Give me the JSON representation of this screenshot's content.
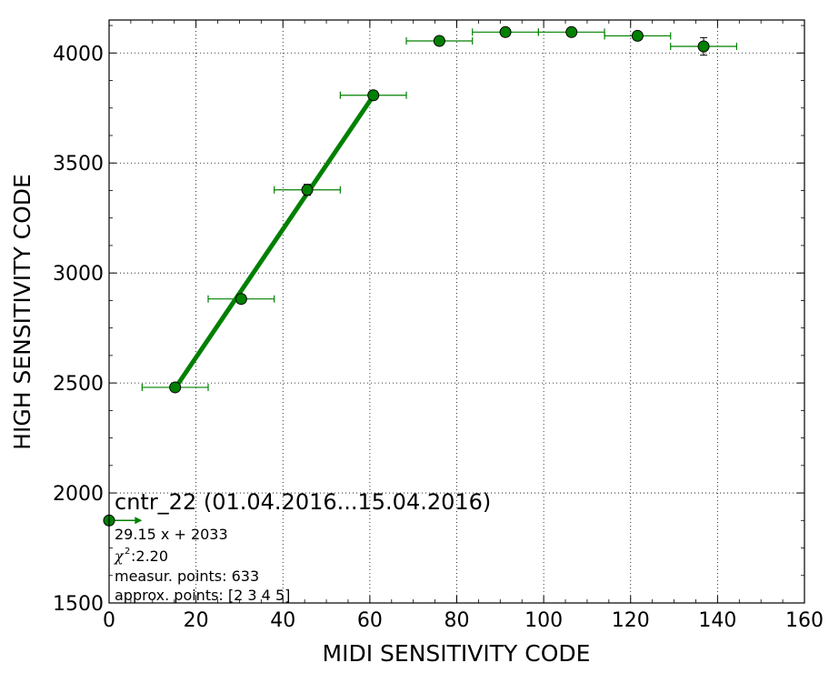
{
  "chart_data": {
    "type": "scatter",
    "title": "",
    "xlabel": "MIDI SENSITIVITY CODE",
    "ylabel": "HIGH SENSITIVITY CODE",
    "xlim": [
      0,
      160
    ],
    "ylim": [
      1500,
      4150
    ],
    "xticks": [
      0,
      20,
      40,
      60,
      80,
      100,
      120,
      140,
      160
    ],
    "yticks": [
      1500,
      2000,
      2500,
      3000,
      3500,
      4000
    ],
    "xtick_labels": [
      "0",
      "20",
      "40",
      "60",
      "80",
      "100",
      "120",
      "140",
      "160"
    ],
    "ytick_labels": [
      "1500",
      "2000",
      "2500",
      "3000",
      "3500",
      "4000"
    ],
    "grid": true,
    "color": "#008000",
    "points": [
      {
        "x": 15.2,
        "y": 2480,
        "xerr": 7.6,
        "yerr": 10
      },
      {
        "x": 30.4,
        "y": 2882,
        "xerr": 7.6,
        "yerr": 20
      },
      {
        "x": 45.6,
        "y": 3378,
        "xerr": 7.6,
        "yerr": 25
      },
      {
        "x": 60.8,
        "y": 3808,
        "xerr": 7.6,
        "yerr": 20
      },
      {
        "x": 76.0,
        "y": 4055,
        "xerr": 7.6,
        "yerr": 15
      },
      {
        "x": 91.2,
        "y": 4095,
        "xerr": 7.6,
        "yerr": 10
      },
      {
        "x": 106.4,
        "y": 4095,
        "xerr": 7.6,
        "yerr": 10
      },
      {
        "x": 121.6,
        "y": 4078,
        "xerr": 7.6,
        "yerr": 10
      },
      {
        "x": 136.8,
        "y": 4030,
        "xerr": 7.6,
        "yerr": 40
      }
    ],
    "legend_marker": {
      "x": 0,
      "y": 1875,
      "xerr_plus": 7.6
    },
    "fit_line": {
      "slope": 29.15,
      "intercept": 2033,
      "x_range": [
        15.2,
        60.8
      ]
    },
    "annotation": {
      "title": "cntr_22 (01.04.2016...15.04.2016)",
      "equation": "29.15 x + 2033",
      "chi_symbol": "χ",
      "chi_sup": "2",
      "chi_value": " :2.20",
      "measur": "measur. points: 633",
      "approx": "approx. points: [2 3 4 5]"
    }
  }
}
